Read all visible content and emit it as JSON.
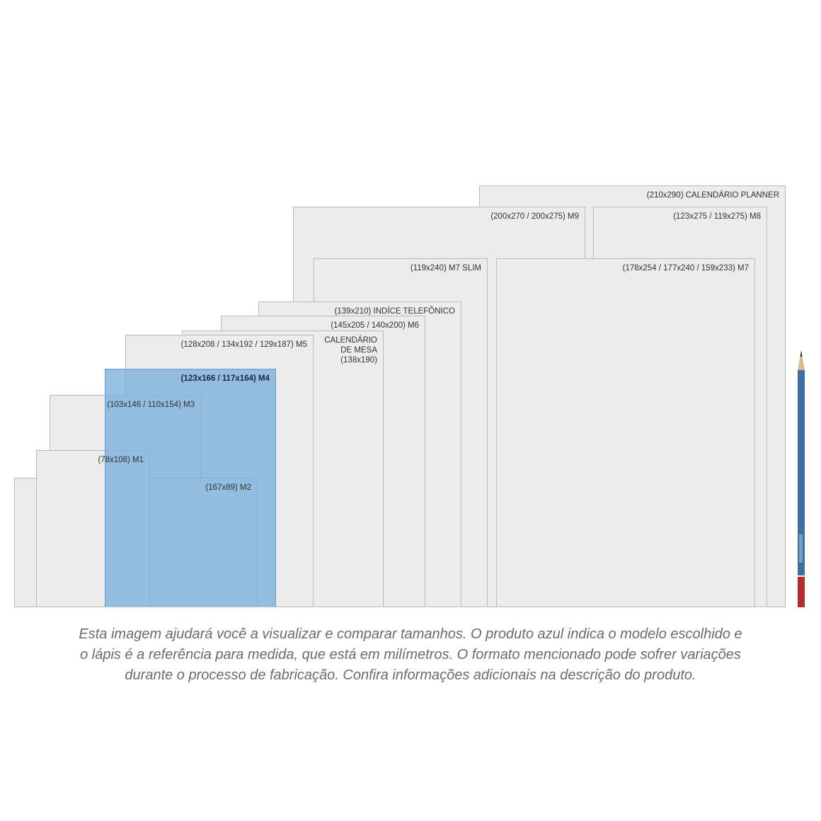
{
  "boxes": [
    {
      "id": "planner",
      "label": "(210x290) CALENDÁRIO PLANNER"
    },
    {
      "id": "m9",
      "label": "(200x270 / 200x275) M9"
    },
    {
      "id": "m8",
      "label": "(123x275 / 119x275) M8"
    },
    {
      "id": "m7",
      "label": "(178x254 / 177x240 / 159x233) M7"
    },
    {
      "id": "m7slim",
      "label": "(119x240) M7 SLIM"
    },
    {
      "id": "indice",
      "label": "(139x210) INDÍCE TELEFÔNICO"
    },
    {
      "id": "m6",
      "label": "(145x205 / 140x200) M6"
    },
    {
      "id": "calendario",
      "label_lines": [
        "CALENDÁRIO",
        "DE MESA",
        "(138x190)"
      ]
    },
    {
      "id": "m5",
      "label": "(128x208 / 134x192 / 129x187) M5"
    },
    {
      "id": "m3",
      "label": "(103x146 / 110x154) M3"
    },
    {
      "id": "m1",
      "label": "(78x108) M1"
    },
    {
      "id": "m2",
      "label": "(167x89) M2"
    },
    {
      "id": "m4",
      "label": "(123x166 / 117x164) M4",
      "selected": true
    }
  ],
  "colors": {
    "selected": "#8fbde2",
    "box": "#ececec",
    "pencil_body": "#3d6fa3",
    "pencil_end": "#b52a2a"
  },
  "pencil": {
    "icon": "pencil-icon"
  },
  "caption": [
    "Esta imagem ajudará você a visualizar e comparar tamanhos. O produto azul indica o modelo escolhido e",
    "o lápis é a referência para medida, que está em milímetros. O formato mencionado pode sofrer variações",
    "durante o processo de fabricação. Confira informações adicionais na descrição do produto."
  ]
}
